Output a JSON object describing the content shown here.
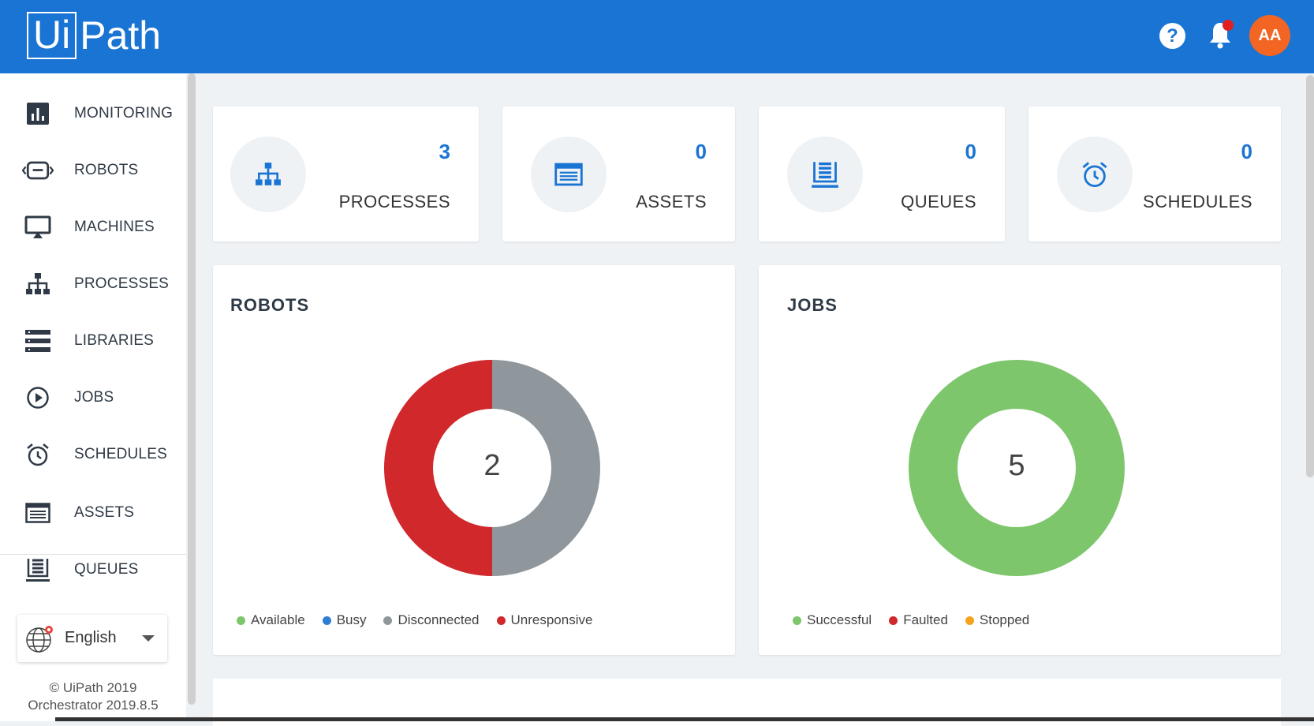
{
  "header": {
    "logo_left": "Ui",
    "logo_right": "Path",
    "help_label": "?",
    "avatar_initials": "AA",
    "brand_color": "#1a74d3"
  },
  "sidebar": {
    "items": [
      {
        "label": "MONITORING",
        "icon": "bar-chart-icon"
      },
      {
        "label": "ROBOTS",
        "icon": "robot-icon"
      },
      {
        "label": "MACHINES",
        "icon": "monitor-icon"
      },
      {
        "label": "PROCESSES",
        "icon": "hierarchy-icon"
      },
      {
        "label": "LIBRARIES",
        "icon": "list-icon"
      },
      {
        "label": "JOBS",
        "icon": "play-circle-icon"
      },
      {
        "label": "SCHEDULES",
        "icon": "alarm-clock-icon"
      },
      {
        "label": "ASSETS",
        "icon": "asset-card-icon"
      },
      {
        "label": "QUEUES",
        "icon": "queue-stack-icon"
      }
    ],
    "language": "English",
    "copyright": "© UiPath 2019",
    "version": "Orchestrator 2019.8.5"
  },
  "stats": [
    {
      "count": "3",
      "label": "PROCESSES",
      "icon": "hierarchy-icon"
    },
    {
      "count": "0",
      "label": "ASSETS",
      "icon": "asset-card-icon"
    },
    {
      "count": "0",
      "label": "QUEUES",
      "icon": "queue-stack-icon"
    },
    {
      "count": "0",
      "label": "SCHEDULES",
      "icon": "alarm-clock-icon"
    }
  ],
  "robots_panel": {
    "title": "ROBOTS",
    "total": "2",
    "legend": [
      {
        "label": "Available",
        "color": "#7dc66b"
      },
      {
        "label": "Busy",
        "color": "#2e7fd4"
      },
      {
        "label": "Disconnected",
        "color": "#8f979c"
      },
      {
        "label": "Unresponsive",
        "color": "#d0282b"
      }
    ],
    "chart_data": {
      "type": "pie",
      "categories": [
        "Available",
        "Busy",
        "Disconnected",
        "Unresponsive"
      ],
      "values": [
        0,
        0,
        1,
        1
      ]
    }
  },
  "jobs_panel": {
    "title": "JOBS",
    "total": "5",
    "legend": [
      {
        "label": "Successful",
        "color": "#7dc66b"
      },
      {
        "label": "Faulted",
        "color": "#d0282b"
      },
      {
        "label": "Stopped",
        "color": "#f4a31b"
      }
    ],
    "chart_data": {
      "type": "pie",
      "categories": [
        "Successful",
        "Faulted",
        "Stopped"
      ],
      "values": [
        5,
        0,
        0
      ]
    }
  }
}
